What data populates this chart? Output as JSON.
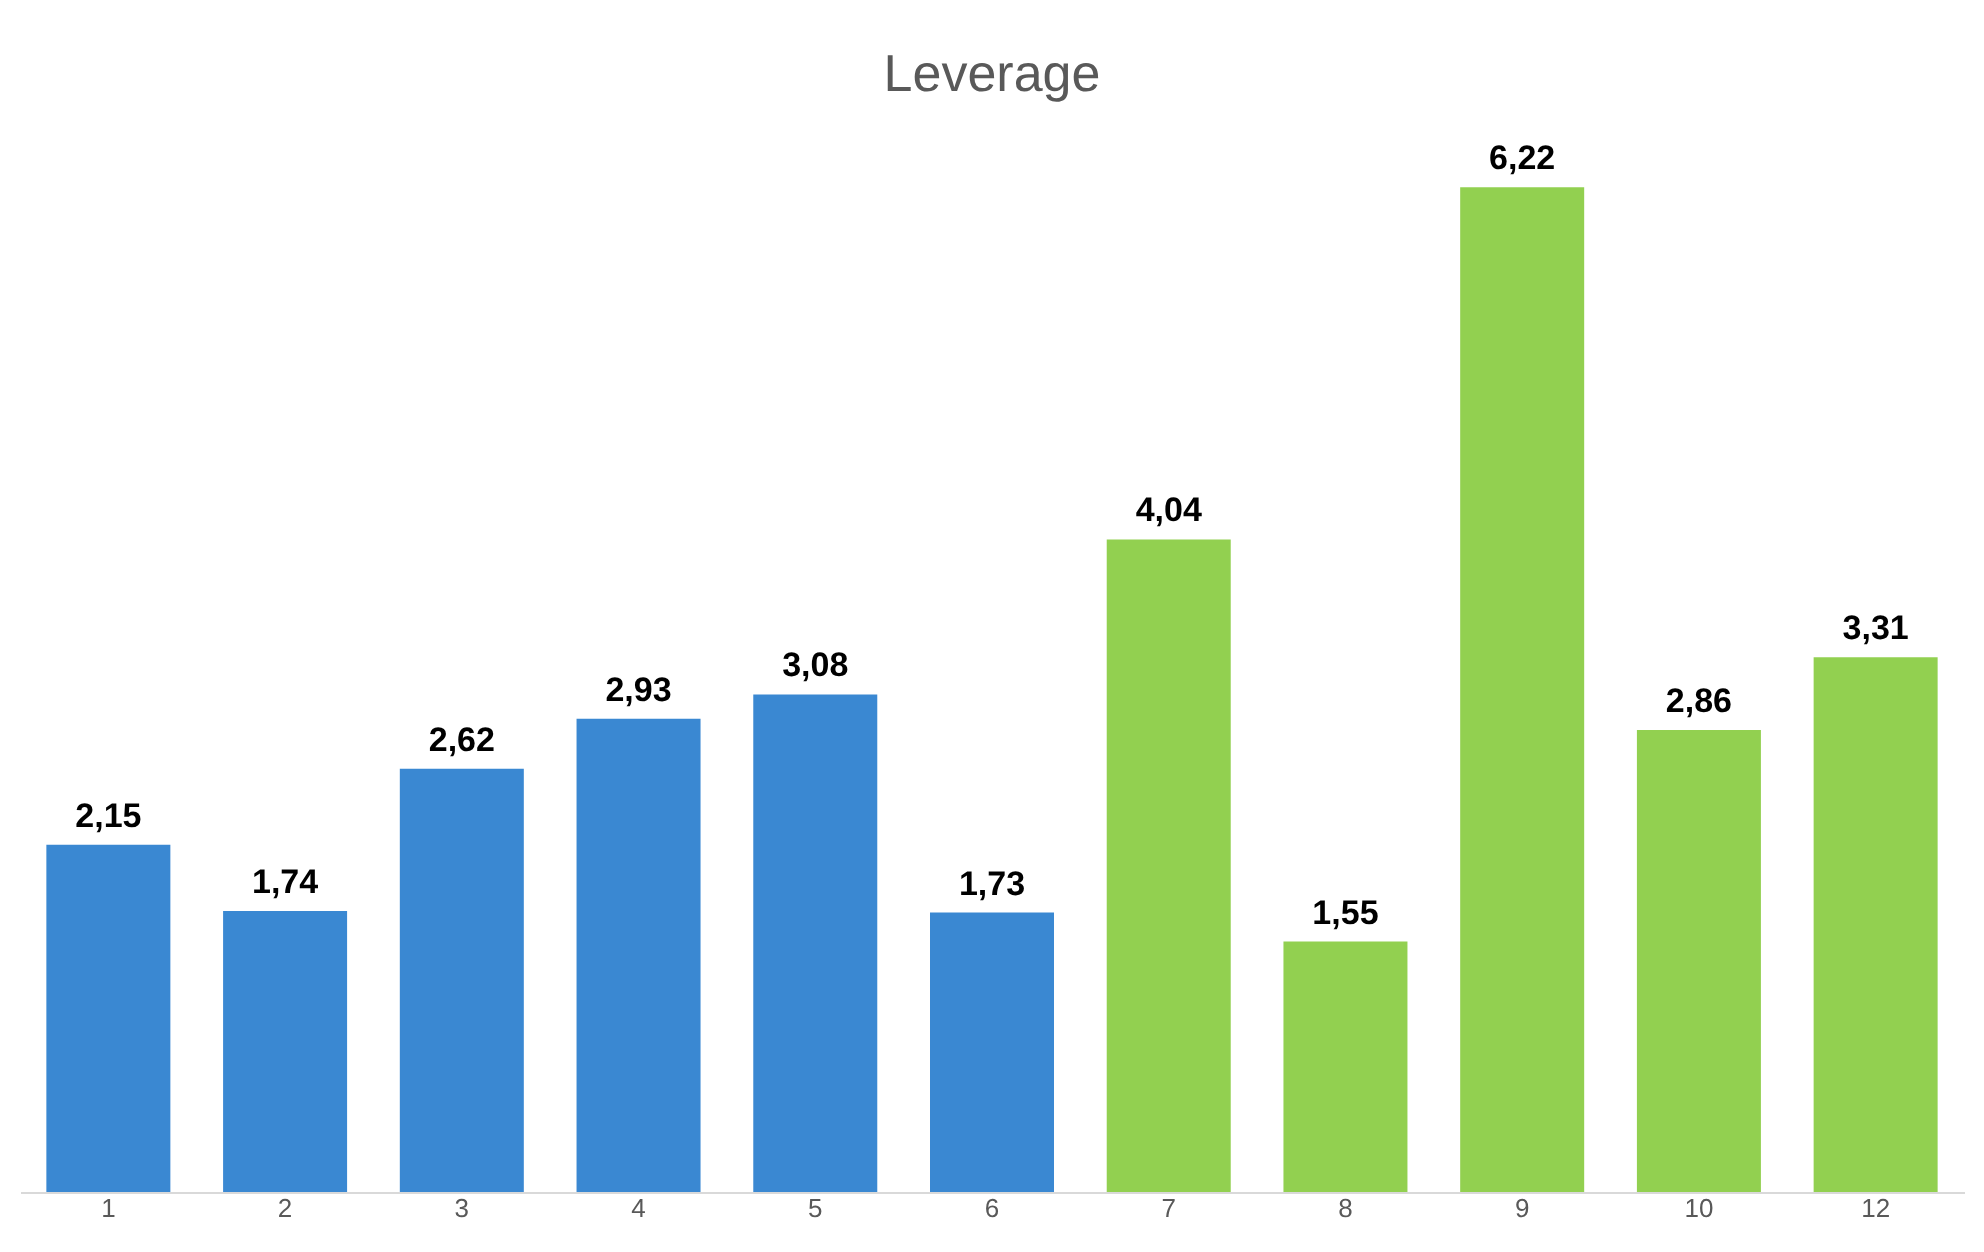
{
  "chart_data": {
    "type": "bar",
    "title": "Leverage",
    "categories": [
      "1",
      "2",
      "3",
      "4",
      "5",
      "6",
      "7",
      "8",
      "9",
      "10",
      "12"
    ],
    "values": [
      2.15,
      1.74,
      2.62,
      2.93,
      3.08,
      1.73,
      4.04,
      1.55,
      6.22,
      2.86,
      3.31
    ],
    "value_labels": [
      "2,15",
      "1,74",
      "2,62",
      "2,93",
      "3,08",
      "1,73",
      "4,04",
      "1,55",
      "6,22",
      "2,86",
      "3,31"
    ],
    "colors": [
      "#3a88d2",
      "#3a88d2",
      "#3a88d2",
      "#3a88d2",
      "#3a88d2",
      "#3a88d2",
      "#92d050",
      "#92d050",
      "#92d050",
      "#92d050",
      "#92d050"
    ],
    "tick_labels": "x",
    "grid": false
  }
}
